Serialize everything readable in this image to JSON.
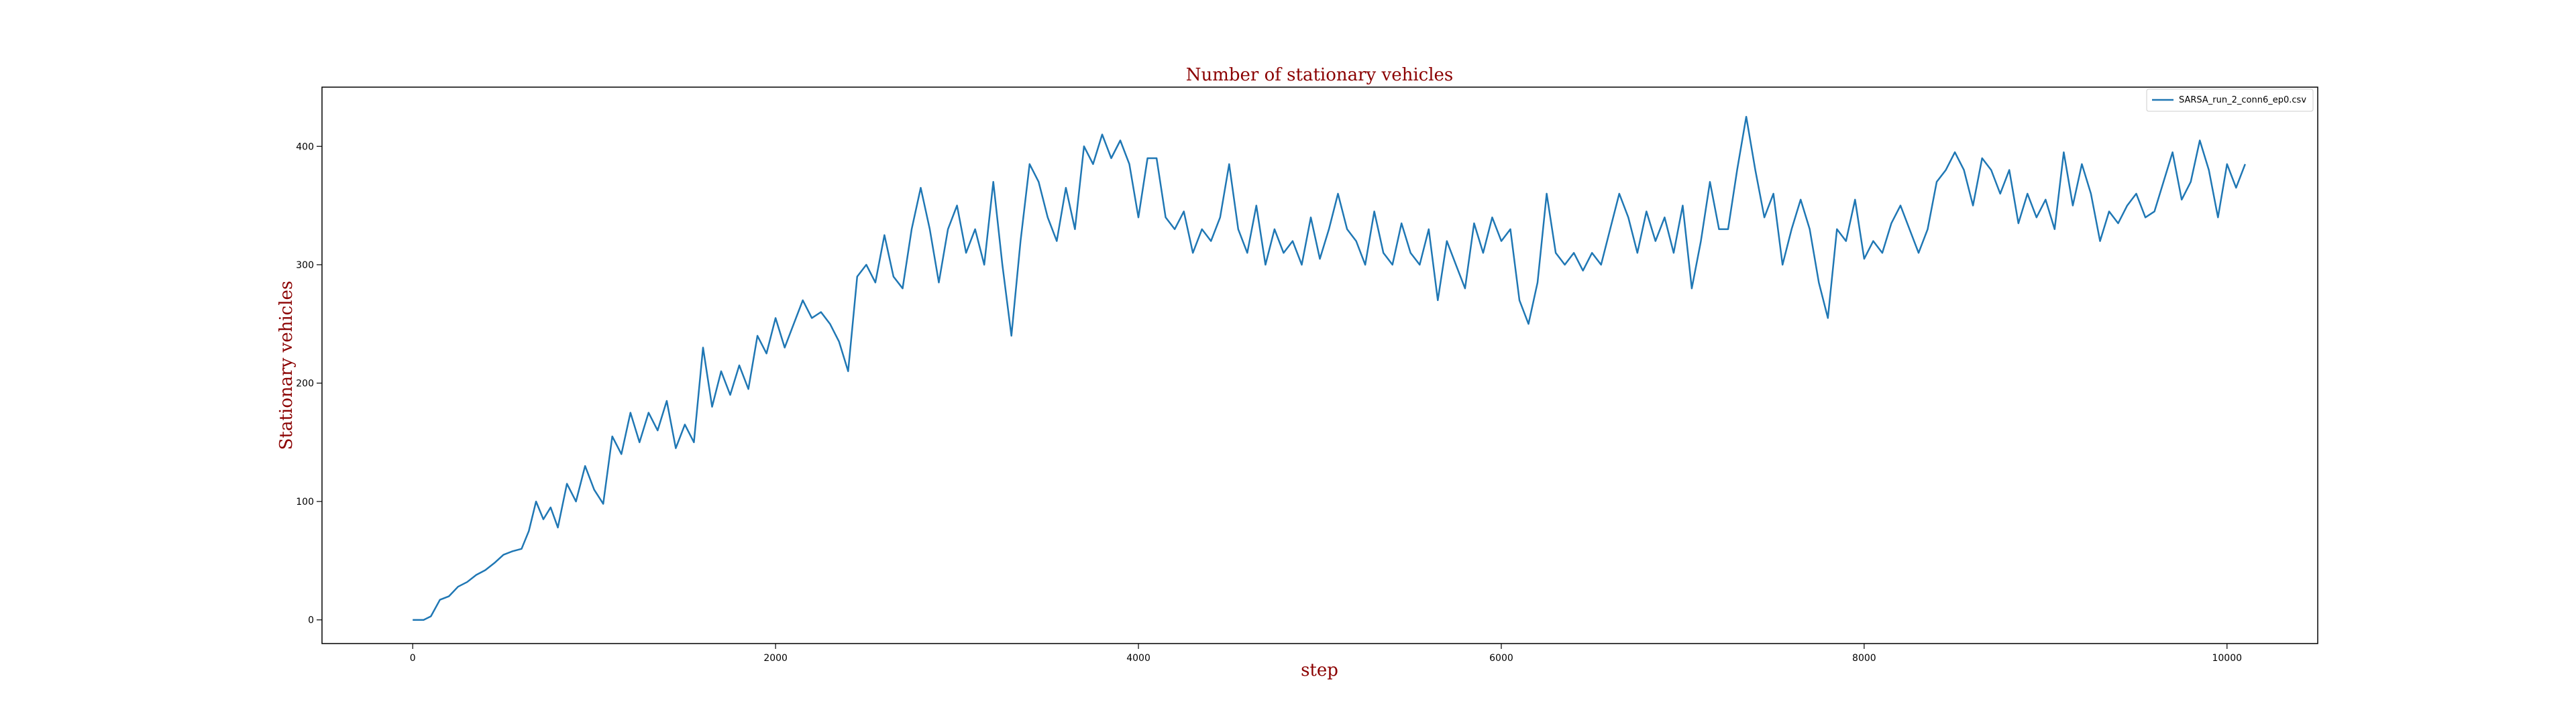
{
  "chart_data": {
    "type": "line",
    "title": "Number of stationary vehicles",
    "xlabel": "step",
    "ylabel": "Stationary vehicles",
    "xlim": [
      -500,
      10500
    ],
    "ylim": [
      -20,
      450
    ],
    "xticks": [
      0,
      2000,
      4000,
      6000,
      8000,
      10000
    ],
    "yticks": [
      0,
      100,
      200,
      300,
      400
    ],
    "legend_position": "upper right",
    "grid": false,
    "series": [
      {
        "name": "SARSA_run_2_conn6_ep0.csv",
        "color": "#1f77b4",
        "points": [
          [
            0,
            0
          ],
          [
            60,
            0
          ],
          [
            100,
            3
          ],
          [
            150,
            17
          ],
          [
            200,
            20
          ],
          [
            250,
            28
          ],
          [
            300,
            32
          ],
          [
            350,
            38
          ],
          [
            400,
            42
          ],
          [
            450,
            48
          ],
          [
            500,
            55
          ],
          [
            550,
            58
          ],
          [
            600,
            60
          ],
          [
            640,
            75
          ],
          [
            680,
            100
          ],
          [
            720,
            85
          ],
          [
            760,
            95
          ],
          [
            800,
            78
          ],
          [
            850,
            115
          ],
          [
            900,
            100
          ],
          [
            950,
            130
          ],
          [
            1000,
            110
          ],
          [
            1050,
            98
          ],
          [
            1100,
            155
          ],
          [
            1150,
            140
          ],
          [
            1200,
            175
          ],
          [
            1250,
            150
          ],
          [
            1300,
            175
          ],
          [
            1350,
            160
          ],
          [
            1400,
            185
          ],
          [
            1450,
            145
          ],
          [
            1500,
            165
          ],
          [
            1550,
            150
          ],
          [
            1600,
            230
          ],
          [
            1650,
            180
          ],
          [
            1700,
            210
          ],
          [
            1750,
            190
          ],
          [
            1800,
            215
          ],
          [
            1850,
            195
          ],
          [
            1900,
            240
          ],
          [
            1950,
            225
          ],
          [
            2000,
            255
          ],
          [
            2050,
            230
          ],
          [
            2100,
            250
          ],
          [
            2150,
            270
          ],
          [
            2200,
            255
          ],
          [
            2250,
            260
          ],
          [
            2300,
            250
          ],
          [
            2350,
            235
          ],
          [
            2400,
            210
          ],
          [
            2450,
            290
          ],
          [
            2500,
            300
          ],
          [
            2550,
            285
          ],
          [
            2600,
            325
          ],
          [
            2650,
            290
          ],
          [
            2700,
            280
          ],
          [
            2750,
            330
          ],
          [
            2800,
            365
          ],
          [
            2850,
            330
          ],
          [
            2900,
            285
          ],
          [
            2950,
            330
          ],
          [
            3000,
            350
          ],
          [
            3050,
            310
          ],
          [
            3100,
            330
          ],
          [
            3150,
            300
          ],
          [
            3200,
            370
          ],
          [
            3250,
            300
          ],
          [
            3300,
            240
          ],
          [
            3350,
            320
          ],
          [
            3400,
            385
          ],
          [
            3450,
            370
          ],
          [
            3500,
            340
          ],
          [
            3550,
            320
          ],
          [
            3600,
            365
          ],
          [
            3650,
            330
          ],
          [
            3700,
            400
          ],
          [
            3750,
            385
          ],
          [
            3800,
            410
          ],
          [
            3850,
            390
          ],
          [
            3900,
            405
          ],
          [
            3950,
            385
          ],
          [
            4000,
            340
          ],
          [
            4050,
            390
          ],
          [
            4100,
            390
          ],
          [
            4150,
            340
          ],
          [
            4200,
            330
          ],
          [
            4250,
            345
          ],
          [
            4300,
            310
          ],
          [
            4350,
            330
          ],
          [
            4400,
            320
          ],
          [
            4450,
            340
          ],
          [
            4500,
            385
          ],
          [
            4550,
            330
          ],
          [
            4600,
            310
          ],
          [
            4650,
            350
          ],
          [
            4700,
            300
          ],
          [
            4750,
            330
          ],
          [
            4800,
            310
          ],
          [
            4850,
            320
          ],
          [
            4900,
            300
          ],
          [
            4950,
            340
          ],
          [
            5000,
            305
          ],
          [
            5050,
            330
          ],
          [
            5100,
            360
          ],
          [
            5150,
            330
          ],
          [
            5200,
            320
          ],
          [
            5250,
            300
          ],
          [
            5300,
            345
          ],
          [
            5350,
            310
          ],
          [
            5400,
            300
          ],
          [
            5450,
            335
          ],
          [
            5500,
            310
          ],
          [
            5550,
            300
          ],
          [
            5600,
            330
          ],
          [
            5650,
            270
          ],
          [
            5700,
            320
          ],
          [
            5750,
            300
          ],
          [
            5800,
            280
          ],
          [
            5850,
            335
          ],
          [
            5900,
            310
          ],
          [
            5950,
            340
          ],
          [
            6000,
            320
          ],
          [
            6050,
            330
          ],
          [
            6100,
            270
          ],
          [
            6150,
            250
          ],
          [
            6200,
            285
          ],
          [
            6250,
            360
          ],
          [
            6300,
            310
          ],
          [
            6350,
            300
          ],
          [
            6400,
            310
          ],
          [
            6450,
            295
          ],
          [
            6500,
            310
          ],
          [
            6550,
            300
          ],
          [
            6600,
            330
          ],
          [
            6650,
            360
          ],
          [
            6700,
            340
          ],
          [
            6750,
            310
          ],
          [
            6800,
            345
          ],
          [
            6850,
            320
          ],
          [
            6900,
            340
          ],
          [
            6950,
            310
          ],
          [
            7000,
            350
          ],
          [
            7050,
            280
          ],
          [
            7100,
            320
          ],
          [
            7150,
            370
          ],
          [
            7200,
            330
          ],
          [
            7250,
            330
          ],
          [
            7300,
            380
          ],
          [
            7350,
            425
          ],
          [
            7400,
            380
          ],
          [
            7450,
            340
          ],
          [
            7500,
            360
          ],
          [
            7550,
            300
          ],
          [
            7600,
            330
          ],
          [
            7650,
            355
          ],
          [
            7700,
            330
          ],
          [
            7750,
            285
          ],
          [
            7800,
            255
          ],
          [
            7850,
            330
          ],
          [
            7900,
            320
          ],
          [
            7950,
            355
          ],
          [
            8000,
            305
          ],
          [
            8050,
            320
          ],
          [
            8100,
            310
          ],
          [
            8150,
            335
          ],
          [
            8200,
            350
          ],
          [
            8250,
            330
          ],
          [
            8300,
            310
          ],
          [
            8350,
            330
          ],
          [
            8400,
            370
          ],
          [
            8450,
            380
          ],
          [
            8500,
            395
          ],
          [
            8550,
            380
          ],
          [
            8600,
            350
          ],
          [
            8650,
            390
          ],
          [
            8700,
            380
          ],
          [
            8750,
            360
          ],
          [
            8800,
            380
          ],
          [
            8850,
            335
          ],
          [
            8900,
            360
          ],
          [
            8950,
            340
          ],
          [
            9000,
            355
          ],
          [
            9050,
            330
          ],
          [
            9100,
            395
          ],
          [
            9150,
            350
          ],
          [
            9200,
            385
          ],
          [
            9250,
            360
          ],
          [
            9300,
            320
          ],
          [
            9350,
            345
          ],
          [
            9400,
            335
          ],
          [
            9450,
            350
          ],
          [
            9500,
            360
          ],
          [
            9550,
            340
          ],
          [
            9600,
            345
          ],
          [
            9650,
            370
          ],
          [
            9700,
            395
          ],
          [
            9750,
            355
          ],
          [
            9800,
            370
          ],
          [
            9850,
            405
          ],
          [
            9900,
            380
          ],
          [
            9950,
            340
          ],
          [
            10000,
            385
          ],
          [
            10050,
            365
          ],
          [
            10100,
            385
          ]
        ]
      }
    ]
  }
}
